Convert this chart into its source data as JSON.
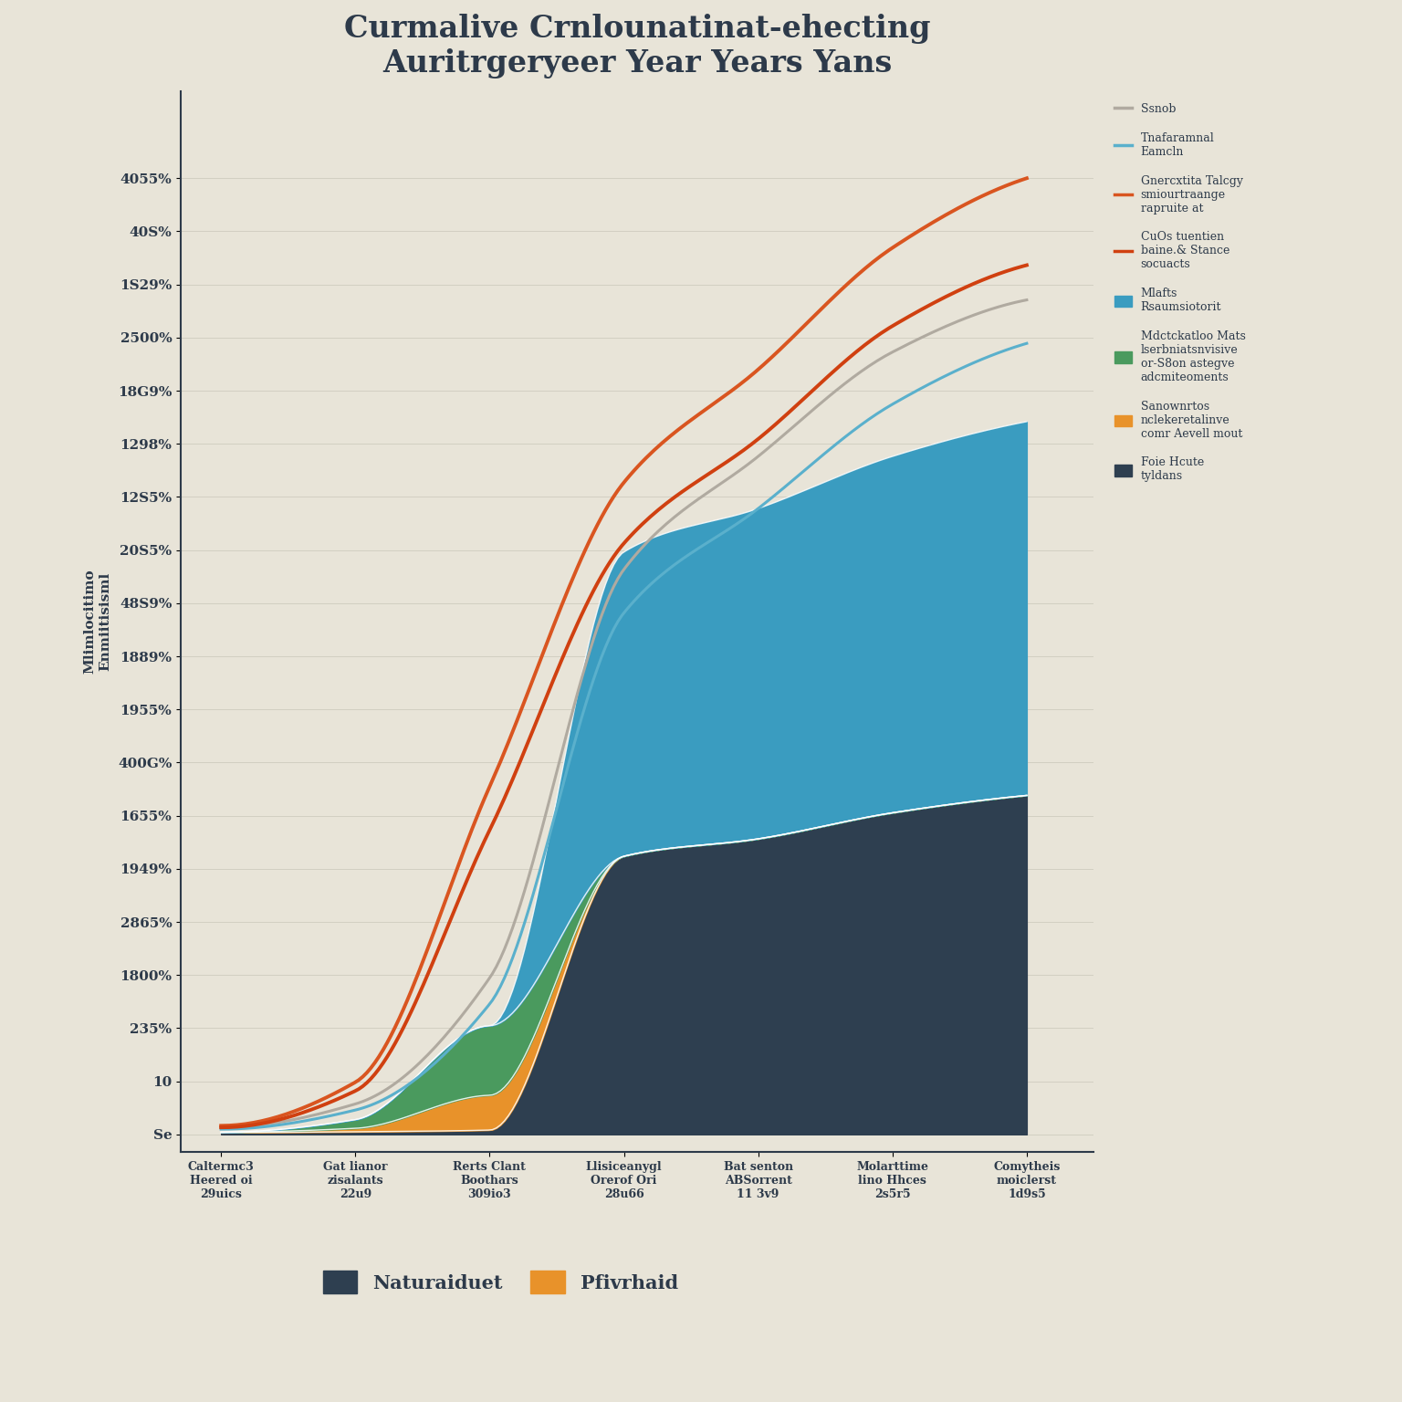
{
  "title": "Curmalive Crnlounatinat-ehecting\nAuritrgeryeer Year Years Yans",
  "ylabel": "Mlimlocitimo\nEnmiitisisml",
  "background_color": "#e8e4d8",
  "x_labels": [
    "Caltermc3\nHeered oi\n29uics",
    "Gat lianor\nzisalants\n22u9",
    "Rerts Clant\nBoothars\n309io3",
    "Llisiceanygl\nOrerof Ori\n28u66",
    "Bat senton\nABSorrent\n11 3v9",
    "Molarttime\nlino Hhces\n2s5r5",
    "Comytheis\nmoiclerst\n1d9s5"
  ],
  "x_values": [
    0,
    1,
    2,
    3,
    4,
    5,
    6
  ],
  "ytick_labels": [
    "Se",
    "10",
    "235%",
    "1800%",
    "2865%",
    "1949%",
    "1655%",
    "400G%",
    "1955%",
    "1889%",
    "48S9%",
    "20S5%",
    "12S5%",
    "1298%",
    "18G9%",
    "2500%",
    "1S29%",
    "40S%",
    "4055%"
  ],
  "num_yticks": 19,
  "layers": {
    "full_home": {
      "label": "Foie Hcute\ntyldans",
      "color": "#2e3f50",
      "values": [
        20,
        30,
        50,
        3200,
        3400,
        3700,
        3900
      ]
    },
    "savings_recoup": {
      "label": "Sanownrtos\nnclekeretalinve\ncomr Aevell mout",
      "color": "#e8922a",
      "values": [
        5,
        40,
        400,
        0,
        0,
        0,
        0
      ]
    },
    "modification": {
      "label": "Mdctckatloo Mats\nlserbniatsnvisive\nor-S8on astegve\nadcmiteoments",
      "color": "#4a9a5e",
      "values": [
        0,
        100,
        800,
        0,
        0,
        0,
        0
      ]
    },
    "main_residential": {
      "label": "Mlafts\nRsaumsiotorit",
      "color": "#3a9cc0",
      "values": [
        0,
        0,
        0,
        3500,
        3800,
        4100,
        4300
      ]
    }
  },
  "lines": {
    "stretch": {
      "label": "Ssnob",
      "color": "#b0aaa0",
      "values": [
        80,
        350,
        1800,
        6500,
        7800,
        9000,
        9600
      ]
    },
    "transformal_energy": {
      "label": "Tnafaramnal\nEamcln",
      "color": "#5ab0cc",
      "values": [
        60,
        280,
        1500,
        6000,
        7200,
        8400,
        9100
      ]
    },
    "generous_target": {
      "label": "Gnercxtita Talcgy\nsmiourtraange\nrapruite at",
      "color": "#d95520",
      "values": [
        100,
        600,
        4000,
        7500,
        8800,
        10200,
        11000
      ]
    },
    "cuts_billion": {
      "label": "CuOs tuentien\nbaine.& Stance\nsocuacts",
      "color": "#d04010",
      "values": [
        80,
        500,
        3500,
        6800,
        8000,
        9300,
        10000
      ]
    }
  },
  "legend_right": [
    {
      "key": "stretch",
      "type": "line"
    },
    {
      "key": "transformal_energy",
      "type": "line"
    },
    {
      "key": "generous_target",
      "type": "line"
    },
    {
      "key": "cuts_billion",
      "type": "line"
    },
    {
      "key": "main_residential",
      "type": "area"
    },
    {
      "key": "modification",
      "type": "area"
    },
    {
      "key": "savings_recoup",
      "type": "area"
    },
    {
      "key": "full_home",
      "type": "area"
    }
  ],
  "legend_bottom": [
    {
      "label": "Naturaiduet",
      "color": "#2e3f50"
    },
    {
      "label": "Pfivrhaid",
      "color": "#e8922a"
    }
  ],
  "title_fontsize": 24,
  "axis_label_fontsize": 11,
  "tick_fontsize": 11,
  "legend_fontsize": 9
}
